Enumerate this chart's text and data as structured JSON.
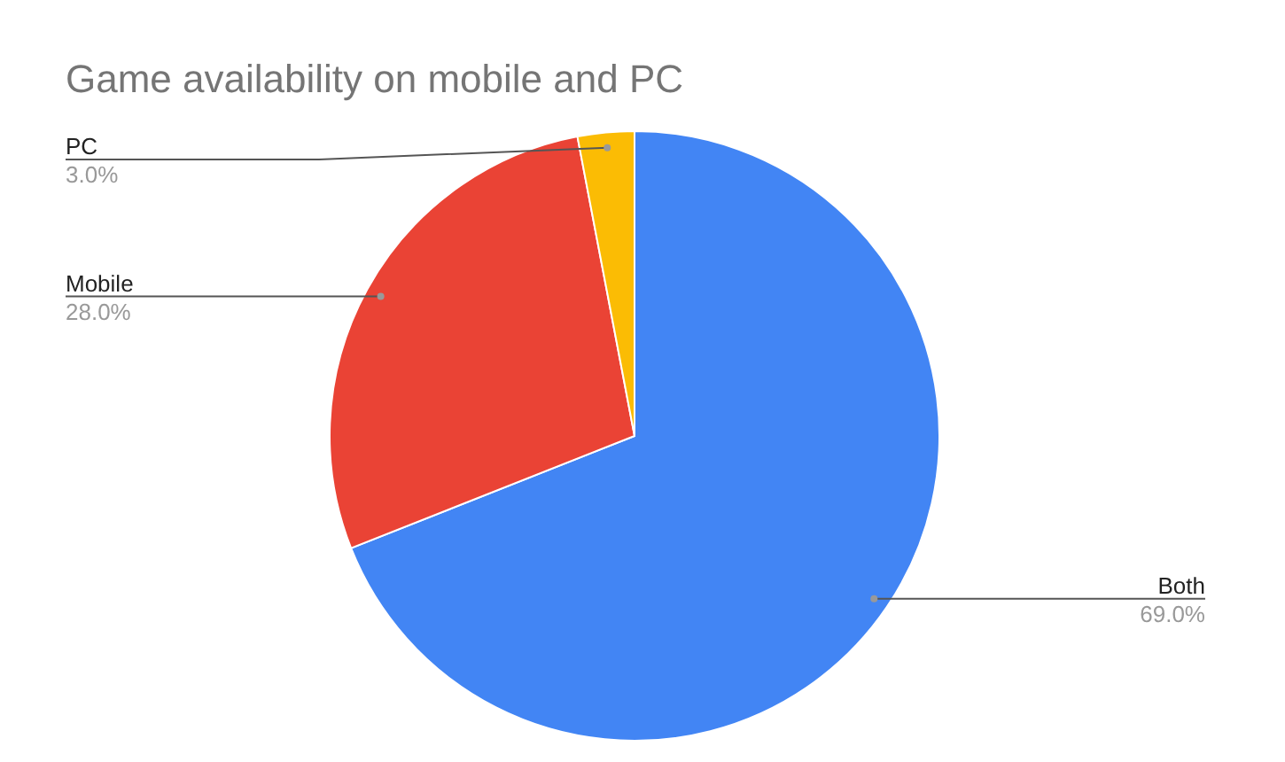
{
  "chart_data": {
    "type": "pie",
    "title": "Game availability on mobile and PC",
    "categories": [
      "Both",
      "Mobile",
      "PC"
    ],
    "values": [
      69,
      28,
      3
    ],
    "colors": [
      "#4285f4",
      "#ea4335",
      "#fbbc04"
    ],
    "value_labels": [
      "69.0%",
      "28.0%",
      "3.0%"
    ]
  }
}
